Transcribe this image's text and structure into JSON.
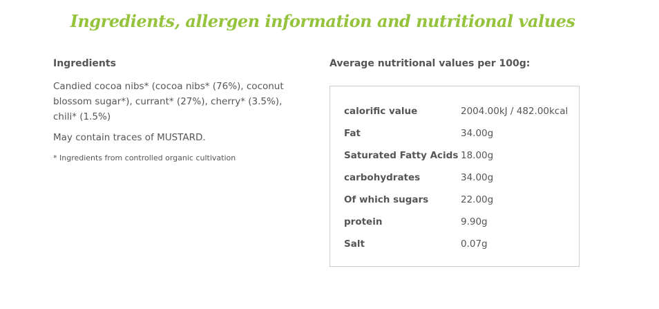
{
  "header": {
    "title": "Ingredients, allergen information and nutritional values"
  },
  "ingredients": {
    "heading": "Ingredients",
    "text": "Candied cocoa nibs* (cocoa nibs* (76%), coconut blossom sugar*), currant* (27%), cherry* (3.5%), chili* (1.5%)",
    "allergens": "May contain traces of MUSTARD.",
    "footnote": "* Ingredients from controlled organic cultivation"
  },
  "nutrition": {
    "heading": "Average nutritional values per 100g:",
    "rows": [
      [
        "calorific value",
        "2004.00kJ / 482.00kcal"
      ],
      [
        "Fat",
        "34.00g"
      ],
      [
        "Saturated Fatty Acids",
        "18.00g"
      ],
      [
        "carbohydrates",
        "34.00g"
      ],
      [
        "Of which sugars",
        "22.00g"
      ],
      [
        "protein",
        "9.90g"
      ],
      [
        "Salt",
        "0.07g"
      ]
    ]
  }
}
